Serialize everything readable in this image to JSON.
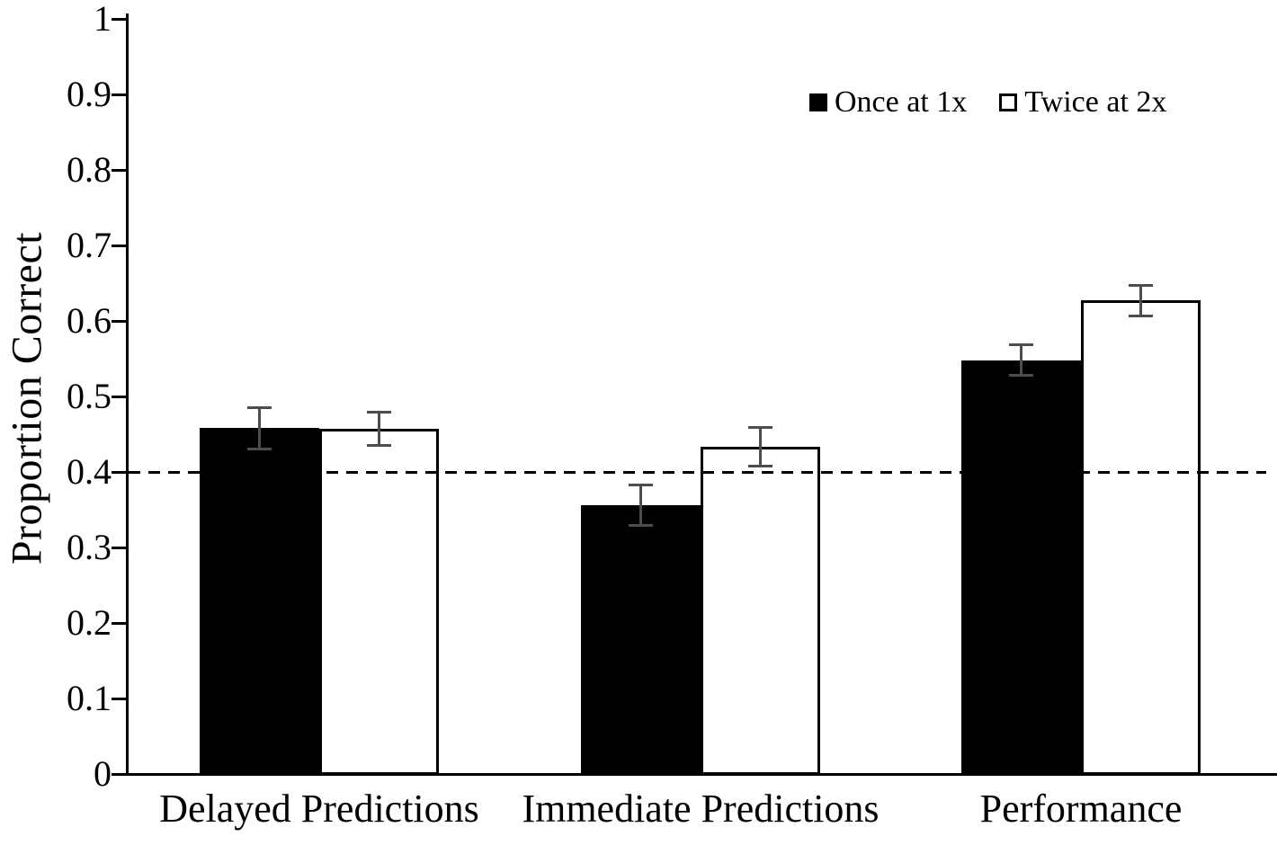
{
  "chart_data": {
    "type": "bar",
    "title": "",
    "xlabel": "",
    "ylabel": "Proportion Correct",
    "ylim": [
      0,
      1
    ],
    "yticks": [
      {
        "value": 0,
        "label": "0"
      },
      {
        "value": 0.1,
        "label": "0.1"
      },
      {
        "value": 0.2,
        "label": "0.2"
      },
      {
        "value": 0.3,
        "label": "0.3"
      },
      {
        "value": 0.4,
        "label": "0.4"
      },
      {
        "value": 0.5,
        "label": "0.5"
      },
      {
        "value": 0.6,
        "label": "0.6"
      },
      {
        "value": 0.7,
        "label": "0.7"
      },
      {
        "value": 0.8,
        "label": "0.8"
      },
      {
        "value": 0.9,
        "label": "0.9"
      },
      {
        "value": 1,
        "label": "1"
      }
    ],
    "categories": [
      "Delayed Predictions",
      "Immediate Predictions",
      "Performance"
    ],
    "series": [
      {
        "name": "Once at 1x",
        "fill": "#000000",
        "border": "#000000",
        "values": [
          0.458,
          0.356,
          0.548
        ],
        "errors": [
          0.028,
          0.027,
          0.021
        ]
      },
      {
        "name": "Twice at 2x",
        "fill": "#ffffff",
        "border": "#000000",
        "values": [
          0.457,
          0.433,
          0.627
        ],
        "errors": [
          0.023,
          0.026,
          0.021
        ]
      }
    ],
    "reference_line": {
      "value": 0.4,
      "style": "dashed",
      "color": "#000000"
    },
    "error_bar_color": "#4d4d4d",
    "axis_color": "#000000",
    "legend_position": "top-right",
    "grid": "off"
  }
}
